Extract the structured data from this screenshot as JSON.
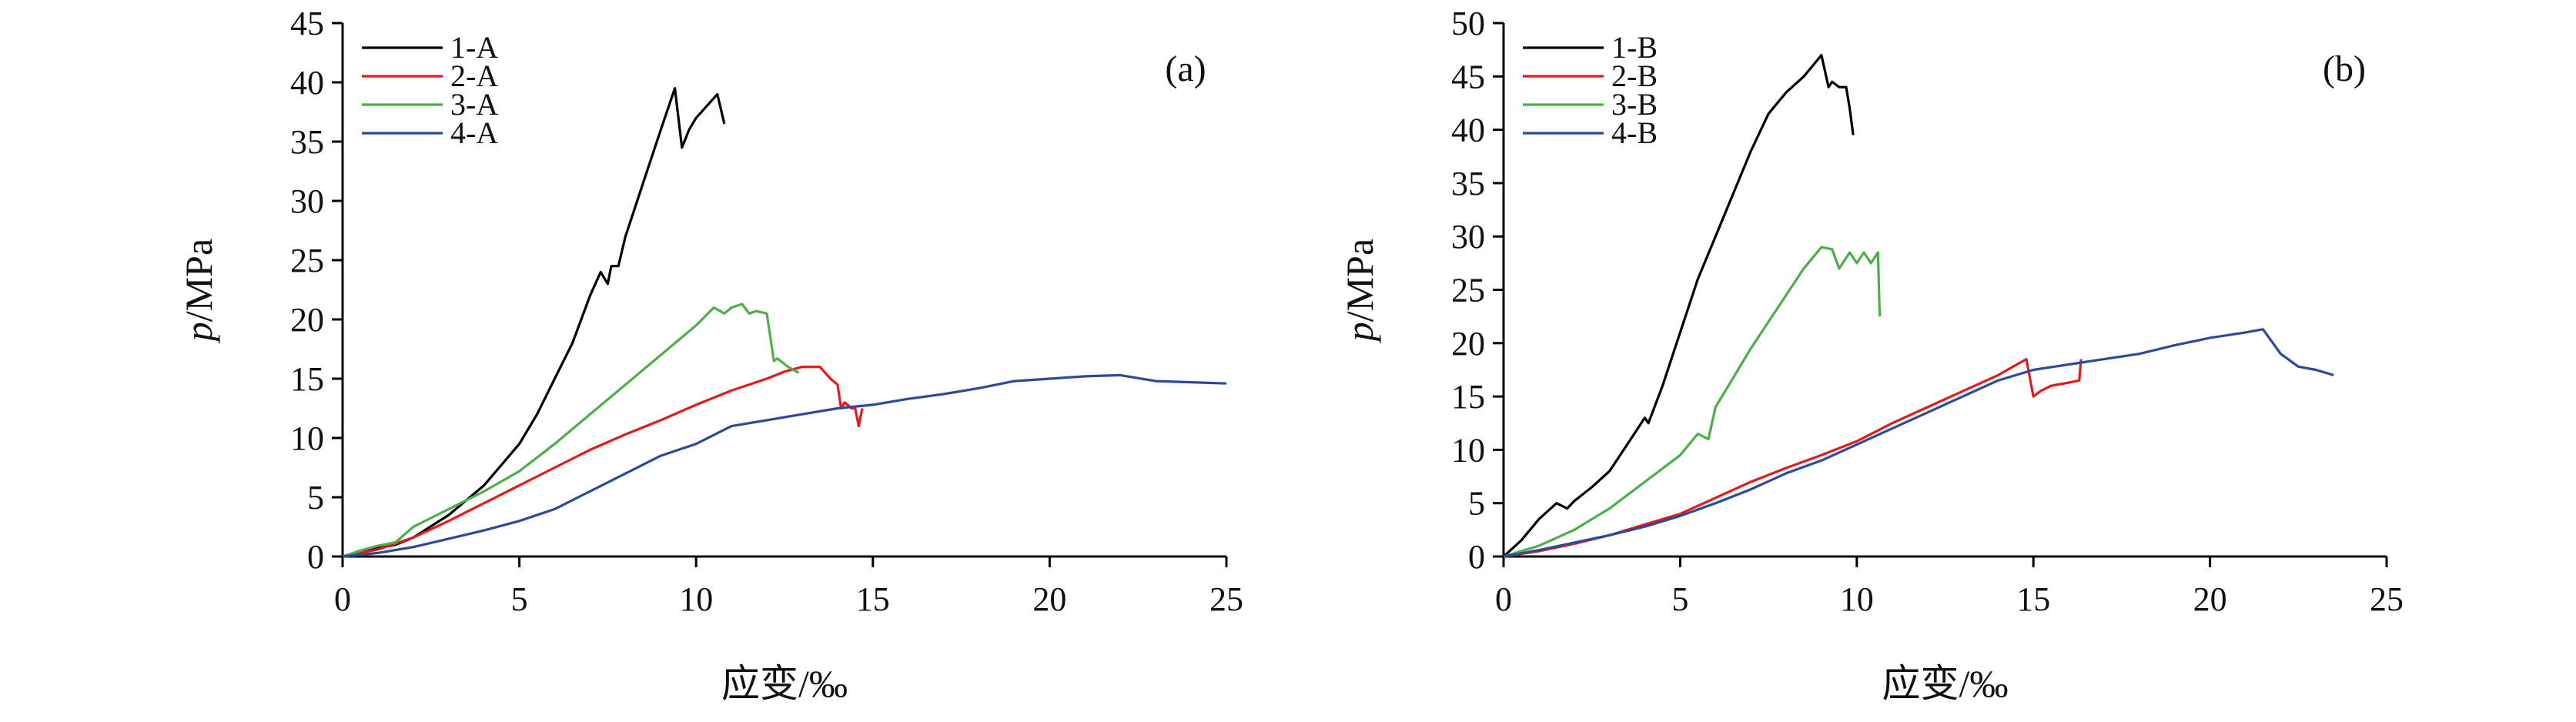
{
  "chart_data": [
    {
      "type": "line",
      "panel_label": "(a)",
      "xlabel": "应变/‰",
      "ylabel_italic": "p",
      "ylabel_rest": "/MPa",
      "xlim": [
        0,
        25
      ],
      "ylim": [
        0,
        45
      ],
      "xticks": [
        0,
        5,
        10,
        15,
        20,
        25
      ],
      "yticks": [
        0,
        5,
        10,
        15,
        20,
        25,
        30,
        35,
        40,
        45
      ],
      "grid": false,
      "legend_position": "top-left",
      "series": [
        {
          "name": "1-A",
          "color": "#000000",
          "x": [
            0,
            0.5,
            1,
            1.5,
            2,
            3,
            4,
            5,
            5.5,
            6,
            6.5,
            7,
            7.3,
            7.5,
            7.6,
            7.8,
            8,
            8.5,
            9,
            9.4,
            9.6,
            9.8,
            10,
            10.3,
            10.6,
            10.8
          ],
          "y": [
            0,
            0.3,
            0.7,
            1,
            1.6,
            3.5,
            6,
            9.5,
            12,
            15,
            18,
            22,
            24,
            23,
            24.5,
            24.5,
            27,
            31.5,
            36,
            39.5,
            34.5,
            36,
            37,
            38,
            39,
            36.5
          ]
        },
        {
          "name": "2-A",
          "color": "#e41a1c",
          "x": [
            0,
            1,
            2,
            3,
            4,
            5,
            6,
            7,
            8,
            9,
            10,
            11,
            12,
            12.5,
            13,
            13.5,
            13.8,
            14,
            14.1,
            14.2,
            14.4,
            14.5,
            14.6,
            14.7
          ],
          "y": [
            0,
            0.6,
            1.6,
            3,
            4.5,
            6,
            7.5,
            9,
            10.3,
            11.5,
            12.8,
            14,
            15,
            15.6,
            16,
            16,
            15,
            14.5,
            12.5,
            13,
            12.5,
            12.5,
            11,
            12.5
          ]
        },
        {
          "name": "3-A",
          "color": "#4daf4a",
          "x": [
            0,
            0.5,
            1,
            1.5,
            2,
            3,
            4,
            5,
            6,
            7,
            8,
            9,
            10,
            10.5,
            10.8,
            11,
            11.3,
            11.5,
            11.7,
            12,
            12.2,
            12.3,
            12.6,
            12.9
          ],
          "y": [
            0,
            0.5,
            0.9,
            1.2,
            2.5,
            4,
            5.5,
            7.2,
            9.5,
            12,
            14.5,
            17,
            19.5,
            21,
            20.5,
            21,
            21.3,
            20.5,
            20.7,
            20.5,
            16.5,
            16.7,
            16,
            15.5
          ]
        },
        {
          "name": "4-A",
          "color": "#2c4a9a",
          "x": [
            0,
            1,
            2,
            3,
            4,
            5,
            6,
            7,
            8,
            9,
            10,
            11,
            12,
            13,
            14,
            15,
            16,
            17,
            18,
            19,
            20,
            21,
            22,
            23,
            24,
            25
          ],
          "y": [
            0,
            0.3,
            0.8,
            1.5,
            2.2,
            3,
            4,
            5.5,
            7,
            8.5,
            9.5,
            11,
            11.5,
            12,
            12.5,
            12.8,
            13.3,
            13.7,
            14.2,
            14.8,
            15,
            15.2,
            15.3,
            14.8,
            14.7,
            14.6
          ]
        }
      ]
    },
    {
      "type": "line",
      "panel_label": "(b)",
      "xlabel": "应变/‰",
      "ylabel_italic": "p",
      "ylabel_rest": "/MPa",
      "xlim": [
        0,
        25
      ],
      "ylim": [
        0,
        50
      ],
      "xticks": [
        0,
        5,
        10,
        15,
        20,
        25
      ],
      "yticks": [
        0,
        5,
        10,
        15,
        20,
        25,
        30,
        35,
        40,
        45,
        50
      ],
      "grid": false,
      "legend_position": "top-left",
      "series": [
        {
          "name": "1-B",
          "color": "#000000",
          "x": [
            0,
            0.5,
            1,
            1.5,
            1.8,
            2,
            2.5,
            3,
            3.5,
            4,
            4.1,
            4.5,
            5,
            5.5,
            6,
            6.5,
            7,
            7.5,
            8,
            8.5,
            9,
            9.2,
            9.3,
            9.5,
            9.7,
            9.8,
            9.9
          ],
          "y": [
            0,
            1.5,
            3.5,
            5,
            4.5,
            5.2,
            6.5,
            8,
            10.5,
            13,
            12.5,
            16,
            21,
            26,
            30,
            34,
            38,
            41.5,
            43.5,
            45,
            47,
            44,
            44.5,
            44,
            44,
            42,
            39.5
          ]
        },
        {
          "name": "2-B",
          "color": "#e41a1c",
          "x": [
            0,
            1,
            2,
            3,
            4,
            5,
            6,
            7,
            8,
            9,
            10,
            11,
            12,
            13,
            14,
            14.8,
            15,
            15.2,
            15.5,
            16,
            16.3,
            16.35
          ],
          "y": [
            0,
            0.5,
            1.2,
            2,
            3,
            4,
            5.5,
            7,
            8.3,
            9.5,
            10.8,
            12.5,
            14,
            15.5,
            17,
            18.5,
            15,
            15.5,
            16,
            16.3,
            16.5,
            18.5
          ]
        },
        {
          "name": "3-B",
          "color": "#4daf4a",
          "x": [
            0,
            1,
            2,
            3,
            4,
            5,
            5.5,
            5.8,
            6,
            7,
            8,
            8.5,
            9,
            9.3,
            9.5,
            9.8,
            10,
            10.2,
            10.4,
            10.6,
            10.65
          ],
          "y": [
            0,
            1,
            2.5,
            4.5,
            7,
            9.5,
            11.5,
            11,
            14,
            19.5,
            24.5,
            27,
            29,
            28.8,
            27,
            28.5,
            27.5,
            28.5,
            27.5,
            28.5,
            22.5
          ]
        },
        {
          "name": "4-B",
          "color": "#2c4a9a",
          "x": [
            0,
            1,
            2,
            3,
            4,
            5,
            6,
            7,
            8,
            9,
            10,
            11,
            12,
            13,
            14,
            15,
            16,
            17,
            18,
            19,
            20,
            21,
            21.5,
            22,
            22.5,
            23,
            23.5
          ],
          "y": [
            0,
            0.6,
            1.3,
            2,
            2.8,
            3.8,
            5,
            6.3,
            7.8,
            9,
            10.5,
            12,
            13.5,
            15,
            16.5,
            17.5,
            18,
            18.5,
            19,
            19.8,
            20.5,
            21,
            21.3,
            19,
            17.8,
            17.5,
            17
          ]
        }
      ]
    }
  ]
}
